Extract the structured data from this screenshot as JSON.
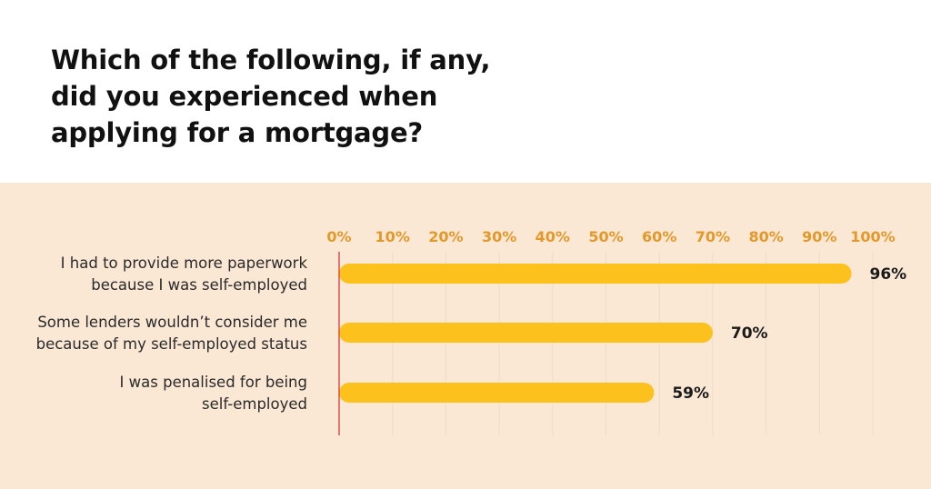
{
  "title_lines": [
    "Which of the following, if any,",
    "did you experienced when",
    "applying for a mortgage?"
  ],
  "colors": {
    "panel_bg": "#fae8d5",
    "bar": "#fcc11c",
    "tick_label": "#e5982a",
    "baseline": "#d33a3a",
    "grid": "#efdcc6",
    "category_text": "#2a2a2a",
    "value_text": "#1a1a1a"
  },
  "chart_data": {
    "type": "bar",
    "orientation": "horizontal",
    "title": "Which of the following, if any, did you experienced when applying for a mortgage?",
    "categories": [
      [
        "I had to provide more paperwork",
        "because I was self-employed"
      ],
      [
        "Some lenders wouldn’t consider me",
        "because of my self-employed status"
      ],
      [
        "I was penalised for being",
        "self-employed"
      ]
    ],
    "values": [
      96,
      70,
      59
    ],
    "value_labels": [
      "96%",
      "70%",
      "59%"
    ],
    "xlim": [
      0,
      100
    ],
    "x_ticks": [
      0,
      10,
      20,
      30,
      40,
      50,
      60,
      70,
      80,
      90,
      100
    ],
    "x_tick_labels": [
      "0%",
      "10%",
      "20%",
      "30%",
      "40%",
      "50%",
      "60%",
      "70%",
      "80%",
      "90%",
      "100%"
    ],
    "axis_position": "top",
    "grid": true,
    "legend": "none"
  }
}
